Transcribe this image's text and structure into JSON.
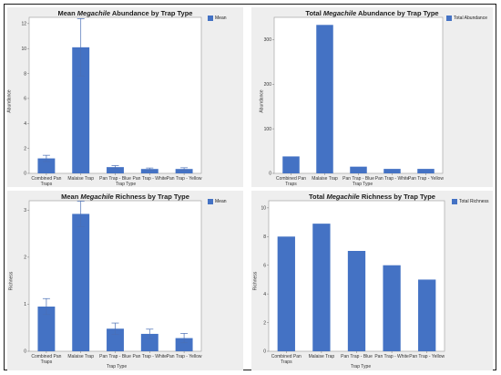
{
  "chart_data": [
    {
      "id": "c0",
      "type": "bar",
      "title_pre": "Mean ",
      "title_em": "Megachile",
      "title_post": " Abundance by Trap Type",
      "ylabel": "Abundance",
      "xlabel": "Trap Type",
      "legend": "Mean",
      "categories": [
        [
          "Combined Pan",
          "Traps"
        ],
        [
          "Malaise Trap"
        ],
        [
          "Pan Trap - Blue"
        ],
        [
          "Pan Trap - White"
        ],
        [
          "Pan Trap - Yellow"
        ]
      ],
      "values": [
        1.2,
        10.1,
        0.5,
        0.35,
        0.35
      ],
      "errors": [
        0.25,
        2.3,
        0.12,
        0.08,
        0.1
      ],
      "ylim": [
        0,
        12.5
      ],
      "yticks": [
        0,
        2,
        4,
        6,
        8,
        10,
        12
      ],
      "color": "#4472c4"
    },
    {
      "id": "c1",
      "type": "bar",
      "title_pre": "Total ",
      "title_em": "Megachile",
      "title_post": " Abundance by Trap Type",
      "ylabel": "Abundance",
      "xlabel": "Trap Type",
      "legend": "Total Abundance",
      "categories": [
        [
          "Combined Pan",
          "Traps"
        ],
        [
          "Malaise Trap"
        ],
        [
          "Pan Trap - Blue"
        ],
        [
          "Pan Trap - White"
        ],
        [
          "Pan Trap - Yellow"
        ]
      ],
      "values": [
        38,
        333,
        15,
        10,
        10
      ],
      "ylim": [
        0,
        350
      ],
      "yticks": [
        0,
        100,
        200,
        300
      ],
      "color": "#4472c4"
    },
    {
      "id": "c2",
      "type": "bar",
      "title_pre": "Mean ",
      "title_em": "Megachile",
      "title_post": " Richness by Trap Type",
      "ylabel": "Richness",
      "xlabel": "Trap Type",
      "legend": "Mean",
      "categories": [
        [
          "Combined Pan",
          "Traps"
        ],
        [
          "Malaise Trap"
        ],
        [
          "Pan Trap - Blue"
        ],
        [
          "Pan Trap - White"
        ],
        [
          "Pan Trap - Yellow"
        ]
      ],
      "values": [
        0.95,
        2.92,
        0.48,
        0.37,
        0.28
      ],
      "errors": [
        0.17,
        0.27,
        0.12,
        0.1,
        0.1
      ],
      "ylim": [
        0,
        3.2
      ],
      "yticks": [
        0,
        1,
        2,
        3
      ],
      "color": "#4472c4"
    },
    {
      "id": "c3",
      "type": "bar",
      "title_pre": "Total ",
      "title_em": "Megachile",
      "title_post": " Richness by Trap Type",
      "ylabel": "Richness",
      "xlabel": "Trap Type",
      "legend": "Total Richness",
      "categories": [
        [
          "Combined Pan",
          "Traps"
        ],
        [
          "Malaise Trap"
        ],
        [
          "Pan Trap - Blue"
        ],
        [
          "Pan Trap - White"
        ],
        [
          "Pan Trap - Yellow"
        ]
      ],
      "values": [
        8,
        8.9,
        7,
        6,
        5
      ],
      "ylim": [
        0,
        10.5
      ],
      "yticks": [
        0,
        2,
        4,
        6,
        8,
        10
      ],
      "color": "#4472c4"
    }
  ]
}
